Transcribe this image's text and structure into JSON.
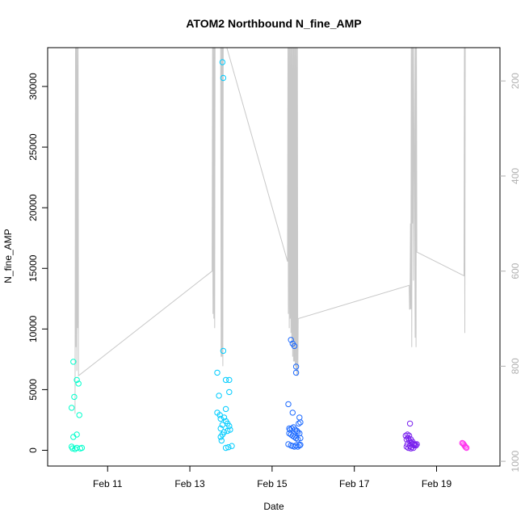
{
  "chart_data": {
    "type": "scatter",
    "title": "ATOM2 Northbound N_fine_AMP",
    "xlabel": "Date",
    "ylabel": "N_fine_AMP",
    "xlim": [
      "2024-02-09T13:00",
      "2024-02-20T13:00"
    ],
    "ylim": [
      -1300,
      33200
    ],
    "x_ticks": [
      {
        "date": "2024-02-11T00:00",
        "label": "Feb 11"
      },
      {
        "date": "2024-02-13T00:00",
        "label": "Feb 13"
      },
      {
        "date": "2024-02-15T00:00",
        "label": "Feb 15"
      },
      {
        "date": "2024-02-17T00:00",
        "label": "Feb 17"
      },
      {
        "date": "2024-02-19T00:00",
        "label": "Feb 19"
      }
    ],
    "y_ticks": [
      0,
      5000,
      10000,
      15000,
      20000,
      25000,
      30000
    ],
    "y2_ticks": [
      200,
      400,
      600,
      800,
      1000
    ],
    "y2lim": [
      1010,
      130
    ],
    "y2_reversed": true,
    "grid": false,
    "background_series": {
      "color": "#c8c8c8",
      "points": [
        [
          "2024-02-10T05:00",
          900
        ],
        [
          "2024-02-10T05:15",
          120
        ],
        [
          "2024-02-10T05:30",
          760
        ],
        [
          "2024-02-10T05:45",
          120
        ],
        [
          "2024-02-10T06:00",
          810
        ],
        [
          "2024-02-10T06:15",
          120
        ],
        [
          "2024-02-10T06:30",
          720
        ],
        [
          "2024-02-10T06:45",
          120
        ],
        [
          "2024-02-10T07:00",
          820
        ],
        [
          "2024-02-13T13:00",
          600
        ],
        [
          "2024-02-13T13:15",
          120
        ],
        [
          "2024-02-13T13:30",
          690
        ],
        [
          "2024-02-13T13:45",
          120
        ],
        [
          "2024-02-13T14:00",
          700
        ],
        [
          "2024-02-13T14:15",
          120
        ],
        [
          "2024-02-13T14:30",
          720
        ],
        [
          "2024-02-13T14:45",
          120
        ],
        [
          "2024-02-13T16:00",
          120
        ],
        [
          "2024-02-13T18:00",
          120
        ],
        [
          "2024-02-13T18:15",
          780
        ],
        [
          "2024-02-13T18:30",
          120
        ],
        [
          "2024-02-13T18:45",
          780
        ],
        [
          "2024-02-13T19:00",
          120
        ],
        [
          "2024-02-13T19:15",
          800
        ],
        [
          "2024-02-13T19:30",
          120
        ],
        [
          "2024-02-13T20:00",
          110
        ],
        [
          "2024-02-15T09:00",
          580
        ],
        [
          "2024-02-15T09:15",
          120
        ],
        [
          "2024-02-15T09:30",
          690
        ],
        [
          "2024-02-15T09:45",
          120
        ],
        [
          "2024-02-15T10:00",
          720
        ],
        [
          "2024-02-15T10:15",
          120
        ],
        [
          "2024-02-15T10:30",
          700
        ],
        [
          "2024-02-15T10:45",
          120
        ],
        [
          "2024-02-15T11:00",
          730
        ],
        [
          "2024-02-15T11:15",
          120
        ],
        [
          "2024-02-15T11:30",
          760
        ],
        [
          "2024-02-15T11:45",
          120
        ],
        [
          "2024-02-15T12:00",
          780
        ],
        [
          "2024-02-15T12:15",
          120
        ],
        [
          "2024-02-15T12:30",
          790
        ],
        [
          "2024-02-15T12:45",
          120
        ],
        [
          "2024-02-15T13:00",
          790
        ],
        [
          "2024-02-15T13:15",
          120
        ],
        [
          "2024-02-15T13:30",
          800
        ],
        [
          "2024-02-15T13:45",
          120
        ],
        [
          "2024-02-15T14:00",
          810
        ],
        [
          "2024-02-15T14:15",
          120
        ],
        [
          "2024-02-15T14:30",
          820
        ],
        [
          "2024-02-15T14:45",
          120
        ],
        [
          "2024-02-15T15:00",
          820
        ],
        [
          "2024-02-15T15:15",
          700
        ],
        [
          "2024-02-18T08:00",
          630
        ],
        [
          "2024-02-18T08:15",
          680
        ],
        [
          "2024-02-18T08:30",
          680
        ],
        [
          "2024-02-18T08:45",
          500
        ],
        [
          "2024-02-18T09:00",
          680
        ],
        [
          "2024-02-18T09:15",
          120
        ],
        [
          "2024-02-18T09:30",
          760
        ],
        [
          "2024-02-18T09:45",
          120
        ],
        [
          "2024-02-18T10:00",
          500
        ],
        [
          "2024-02-18T10:15",
          120
        ],
        [
          "2024-02-18T10:30",
          620
        ],
        [
          "2024-02-18T11:00",
          120
        ],
        [
          "2024-02-18T11:30",
          740
        ],
        [
          "2024-02-18T11:45",
          120
        ],
        [
          "2024-02-18T12:00",
          760
        ],
        [
          "2024-02-18T12:15",
          120
        ],
        [
          "2024-02-18T12:30",
          560
        ],
        [
          "2024-02-19T16:00",
          610
        ],
        [
          "2024-02-19T16:15",
          130
        ],
        [
          "2024-02-19T16:30",
          730
        ],
        [
          "2024-02-19T16:45",
          120
        ]
      ]
    },
    "series": [
      {
        "color": "#00ffcc",
        "points": [
          [
            "2024-02-10T04:00",
            7300
          ],
          [
            "2024-02-10T06:00",
            5800
          ],
          [
            "2024-02-10T07:00",
            5500
          ],
          [
            "2024-02-10T04:30",
            4400
          ],
          [
            "2024-02-10T03:00",
            3500
          ],
          [
            "2024-02-10T07:30",
            2900
          ],
          [
            "2024-02-10T06:00",
            1300
          ],
          [
            "2024-02-10T04:00",
            1100
          ],
          [
            "2024-02-10T03:00",
            300
          ],
          [
            "2024-02-10T03:30",
            150
          ],
          [
            "2024-02-10T05:00",
            100
          ],
          [
            "2024-02-10T06:00",
            200
          ],
          [
            "2024-02-10T08:00",
            150
          ],
          [
            "2024-02-10T09:00",
            200
          ]
        ]
      },
      {
        "color": "#00ccff",
        "points": [
          [
            "2024-02-13T19:00",
            32000
          ],
          [
            "2024-02-13T19:30",
            30700
          ],
          [
            "2024-02-13T19:30",
            8200
          ],
          [
            "2024-02-13T16:00",
            6400
          ],
          [
            "2024-02-13T21:00",
            5800
          ],
          [
            "2024-02-13T23:00",
            5800
          ],
          [
            "2024-02-13T17:00",
            4500
          ],
          [
            "2024-02-13T23:00",
            4800
          ],
          [
            "2024-02-13T16:00",
            3100
          ],
          [
            "2024-02-13T17:30",
            2900
          ],
          [
            "2024-02-13T18:00",
            2600
          ],
          [
            "2024-02-13T20:00",
            2700
          ],
          [
            "2024-02-13T21:00",
            2400
          ],
          [
            "2024-02-13T22:00",
            2200
          ],
          [
            "2024-02-13T19:00",
            2100
          ],
          [
            "2024-02-13T23:00",
            2000
          ],
          [
            "2024-02-13T21:00",
            3400
          ],
          [
            "2024-02-13T18:00",
            1800
          ],
          [
            "2024-02-13T20:00",
            1500
          ],
          [
            "2024-02-13T22:00",
            1600
          ],
          [
            "2024-02-13T19:00",
            1300
          ],
          [
            "2024-02-13T23:30",
            1700
          ],
          [
            "2024-02-13T18:00",
            1100
          ],
          [
            "2024-02-13T18:30",
            800
          ],
          [
            "2024-02-13T21:00",
            200
          ],
          [
            "2024-02-13T22:30",
            250
          ],
          [
            "2024-02-14T00:30",
            350
          ]
        ]
      },
      {
        "color": "#1e6bff",
        "points": [
          [
            "2024-02-15T11:00",
            9100
          ],
          [
            "2024-02-15T12:00",
            8800
          ],
          [
            "2024-02-15T13:00",
            8600
          ],
          [
            "2024-02-15T14:00",
            6900
          ],
          [
            "2024-02-15T14:00",
            6400
          ],
          [
            "2024-02-15T09:30",
            3800
          ],
          [
            "2024-02-15T12:00",
            3100
          ],
          [
            "2024-02-15T16:00",
            2700
          ],
          [
            "2024-02-15T16:30",
            2300
          ],
          [
            "2024-02-15T15:30",
            2200
          ],
          [
            "2024-02-15T10:00",
            1800
          ],
          [
            "2024-02-15T10:30",
            1700
          ],
          [
            "2024-02-15T11:30",
            1800
          ],
          [
            "2024-02-15T12:30",
            1900
          ],
          [
            "2024-02-15T13:30",
            1700
          ],
          [
            "2024-02-15T14:30",
            1600
          ],
          [
            "2024-02-15T15:00",
            1500
          ],
          [
            "2024-02-15T16:00",
            1400
          ],
          [
            "2024-02-15T10:00",
            1400
          ],
          [
            "2024-02-15T11:00",
            1300
          ],
          [
            "2024-02-15T12:00",
            1200
          ],
          [
            "2024-02-15T13:00",
            1100
          ],
          [
            "2024-02-15T14:00",
            1000
          ],
          [
            "2024-02-15T15:00",
            900
          ],
          [
            "2024-02-15T16:30",
            1000
          ],
          [
            "2024-02-15T09:30",
            500
          ],
          [
            "2024-02-15T11:00",
            400
          ],
          [
            "2024-02-15T12:00",
            350
          ],
          [
            "2024-02-15T13:00",
            300
          ],
          [
            "2024-02-15T14:00",
            400
          ],
          [
            "2024-02-15T15:00",
            300
          ],
          [
            "2024-02-15T16:00",
            400
          ],
          [
            "2024-02-15T16:30",
            450
          ]
        ]
      },
      {
        "color": "#7a22ee",
        "points": [
          [
            "2024-02-18T08:30",
            2200
          ],
          [
            "2024-02-18T07:00",
            1300
          ],
          [
            "2024-02-18T08:00",
            1200
          ],
          [
            "2024-02-18T06:00",
            1200
          ],
          [
            "2024-02-18T07:30",
            1000
          ],
          [
            "2024-02-18T06:30",
            900
          ],
          [
            "2024-02-18T08:00",
            800
          ],
          [
            "2024-02-18T09:00",
            900
          ],
          [
            "2024-02-18T10:00",
            700
          ],
          [
            "2024-02-18T10:30",
            500
          ],
          [
            "2024-02-18T11:00",
            400
          ],
          [
            "2024-02-18T11:30",
            500
          ],
          [
            "2024-02-18T09:30",
            600
          ],
          [
            "2024-02-18T07:00",
            500
          ],
          [
            "2024-02-18T06:30",
            300
          ],
          [
            "2024-02-18T08:30",
            350
          ],
          [
            "2024-02-18T09:30",
            250
          ],
          [
            "2024-02-18T10:30",
            200
          ],
          [
            "2024-02-18T09:00",
            150
          ],
          [
            "2024-02-18T11:00",
            450
          ],
          [
            "2024-02-18T12:00",
            400
          ],
          [
            "2024-02-18T07:30",
            200
          ],
          [
            "2024-02-18T12:30",
            500
          ]
        ]
      },
      {
        "color": "#ff33ee",
        "points": [
          [
            "2024-02-19T15:00",
            600
          ],
          [
            "2024-02-19T15:30",
            550
          ],
          [
            "2024-02-19T16:00",
            450
          ],
          [
            "2024-02-19T16:30",
            350
          ],
          [
            "2024-02-19T17:00",
            250
          ],
          [
            "2024-02-19T17:30",
            200
          ]
        ]
      }
    ]
  }
}
